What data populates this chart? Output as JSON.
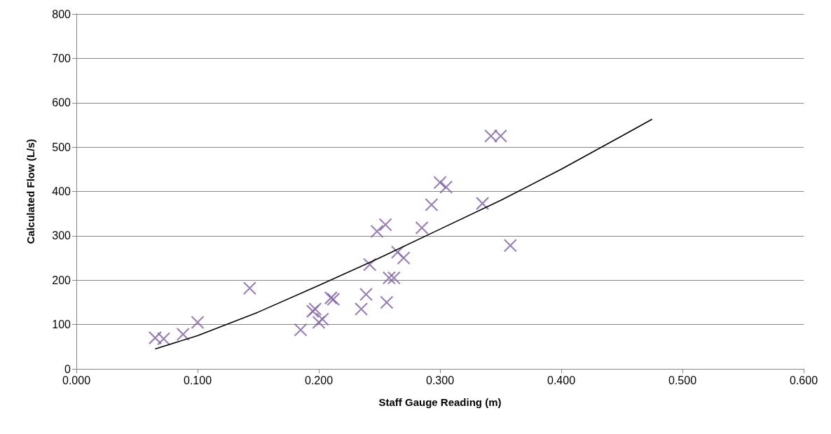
{
  "chart_data": {
    "type": "scatter",
    "xlabel": "Staff Gauge Reading (m)",
    "ylabel": "Calculated Flow (L/s)",
    "xlim": [
      0,
      0.6
    ],
    "xticks": [
      {
        "value": 0,
        "label": "0.000"
      },
      {
        "value": 0.1,
        "label": "0.100"
      },
      {
        "value": 0.2,
        "label": "0.200"
      },
      {
        "value": 0.3,
        "label": "0.300"
      },
      {
        "value": 0.4,
        "label": "0.400"
      },
      {
        "value": 0.5,
        "label": "0.500"
      },
      {
        "value": 0.6,
        "label": "0.600"
      }
    ],
    "ylim": [
      0,
      800
    ],
    "yticks": [
      0,
      100,
      200,
      300,
      400,
      500,
      600,
      700,
      800
    ],
    "grid": "y",
    "series": [
      {
        "color": "#8064a2",
        "marker": "cross",
        "x": [
          0.065,
          0.072,
          0.088,
          0.1,
          0.143,
          0.185,
          0.195,
          0.197,
          0.2,
          0.203,
          0.21,
          0.212,
          0.235,
          0.239,
          0.242,
          0.248,
          0.255,
          0.256,
          0.258,
          0.262,
          0.265,
          0.27,
          0.285,
          0.293,
          0.3,
          0.305,
          0.335,
          0.342,
          0.35,
          0.358
        ],
        "values": [
          70,
          68,
          78,
          105,
          182,
          88,
          130,
          135,
          105,
          112,
          160,
          157,
          135,
          168,
          235,
          310,
          325,
          150,
          205,
          205,
          263,
          250,
          318,
          370,
          420,
          410,
          373,
          525,
          525,
          278
        ]
      },
      {
        "type": "line",
        "color": "#000000",
        "marker": "none",
        "line_style": "solid",
        "x": [
          0.065,
          0.1,
          0.15,
          0.2,
          0.25,
          0.3,
          0.35,
          0.4,
          0.45,
          0.475
        ],
        "values": [
          45,
          75,
          128,
          188,
          250,
          315,
          380,
          450,
          525,
          563
        ]
      }
    ]
  }
}
